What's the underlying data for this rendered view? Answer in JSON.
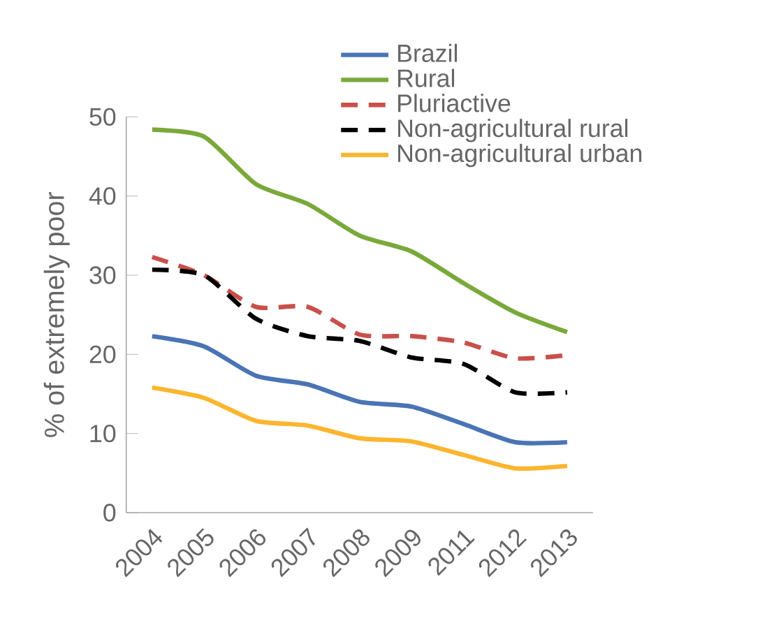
{
  "chart_data": {
    "type": "line",
    "ylabel": "% of extremely poor",
    "categories": [
      "2004",
      "2005",
      "2006",
      "2007",
      "2008",
      "2009",
      "2011",
      "2012",
      "2013"
    ],
    "ylim": [
      0,
      50
    ],
    "yticks": [
      0,
      10,
      20,
      30,
      40,
      50
    ],
    "grid": false,
    "legend": "top right",
    "series": [
      {
        "name": "Brazil",
        "color": "#4a74b5",
        "line_style": "solid",
        "values": [
          22.3,
          21,
          17.3,
          16.2,
          14,
          13.4,
          11.2,
          8.9,
          8.9
        ]
      },
      {
        "name": "Rural",
        "color": "#7aa83a",
        "line_style": "solid",
        "values": [
          48.4,
          47.5,
          41.5,
          39,
          35,
          33,
          29,
          25.3,
          22.8
        ]
      },
      {
        "name": "Pluriactive",
        "color": "#c9504a",
        "line_style": "dashed",
        "values": [
          32.3,
          30,
          26,
          26,
          22.5,
          22.3,
          21.5,
          19.5,
          19.9
        ]
      },
      {
        "name": "Non-agricultural rural",
        "color": "#000000",
        "line_style": "dashed",
        "values": [
          30.7,
          30,
          24.5,
          22.3,
          21.7,
          19.6,
          18.8,
          15.2,
          15.2
        ]
      },
      {
        "name": "Non-agricultural urban",
        "color": "#fbb52e",
        "line_style": "solid",
        "values": [
          15.8,
          14.5,
          11.6,
          11,
          9.4,
          9,
          7.3,
          5.6,
          5.9
        ]
      }
    ]
  }
}
